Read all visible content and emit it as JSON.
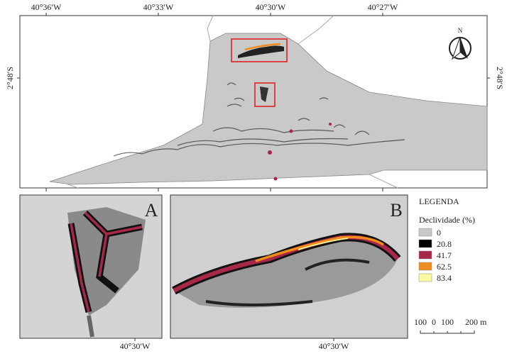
{
  "map": {
    "top_labels": [
      "40°36′W",
      "40°33′W",
      "40°30′W",
      "40°27′W"
    ],
    "side_labels": [
      "2°48′S",
      "2°48′S"
    ],
    "north": "N",
    "insets": [
      {
        "label": "A",
        "coordinate": "40°30′W"
      },
      {
        "label": "B",
        "coordinate": "40°30′W"
      }
    ]
  },
  "legend": {
    "title": "LEGENDA",
    "subtitle": "Declividade (%)",
    "classes": [
      {
        "value": 0,
        "color": "#c8c8c8"
      },
      {
        "value": 20.8,
        "color": "#000000"
      },
      {
        "value": 41.7,
        "color": "#a8284a"
      },
      {
        "value": 62.5,
        "color": "#f08c1e"
      },
      {
        "value": 83.4,
        "color": "#fafaa0"
      }
    ]
  },
  "scale_bar": {
    "labels": [
      "100",
      "0",
      "100",
      "200 m"
    ]
  }
}
